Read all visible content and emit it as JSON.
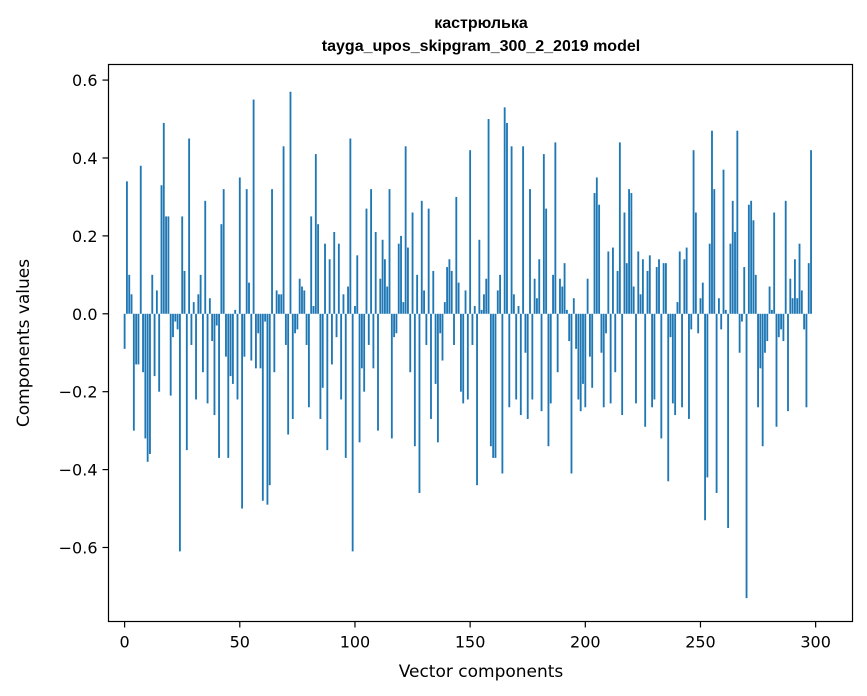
{
  "chart_data": {
    "type": "bar",
    "title": "кастрюлька",
    "subtitle": "tayga_upos_skipgram_300_2_2019 model",
    "xlabel": "Vector components",
    "ylabel": "Components values",
    "xlim": [
      -7,
      316
    ],
    "ylim": [
      -0.79,
      0.64
    ],
    "xticks": [
      0,
      50,
      100,
      150,
      200,
      250,
      300
    ],
    "yticks": [
      0.6,
      0.4,
      0.2,
      0.0,
      -0.2,
      -0.4,
      -0.6
    ],
    "ytick_labels": [
      "0.6",
      "0.4",
      "0.2",
      "0.0",
      "−0.2",
      "−0.4",
      "−0.6"
    ],
    "bar_color": "#1f77b4",
    "grid": false,
    "values": [
      -0.09,
      0.34,
      0.1,
      0.05,
      -0.3,
      -0.13,
      -0.13,
      0.38,
      -0.15,
      -0.32,
      -0.38,
      -0.36,
      0.1,
      -0.16,
      0.06,
      -0.2,
      0.33,
      0.49,
      0.25,
      0.25,
      -0.21,
      -0.06,
      -0.02,
      -0.04,
      -0.61,
      0.25,
      0.11,
      -0.35,
      0.45,
      -0.08,
      0.03,
      -0.22,
      0.05,
      0.1,
      -0.15,
      0.29,
      -0.23,
      0.04,
      -0.07,
      -0.26,
      -0.03,
      -0.37,
      0.23,
      0.32,
      -0.11,
      -0.37,
      -0.16,
      -0.18,
      0.01,
      -0.22,
      0.35,
      -0.5,
      -0.11,
      0.32,
      0.08,
      -0.12,
      0.55,
      -0.14,
      -0.05,
      -0.14,
      -0.48,
      -0.02,
      -0.49,
      -0.44,
      0.32,
      -0.15,
      0.06,
      0.05,
      0.05,
      0.43,
      -0.08,
      -0.31,
      0.57,
      -0.27,
      -0.05,
      -0.04,
      0.09,
      0.07,
      0.06,
      -0.08,
      -0.24,
      0.25,
      0.02,
      0.41,
      0.23,
      -0.27,
      -0.19,
      0.18,
      -0.35,
      0.14,
      -0.13,
      0.21,
      -0.06,
      0.18,
      -0.22,
      0.05,
      -0.37,
      0.07,
      0.45,
      -0.61,
      0.02,
      0.15,
      -0.33,
      -0.14,
      -0.2,
      0.27,
      -0.08,
      0.32,
      -0.14,
      0.21,
      -0.3,
      0.09,
      0.19,
      0.14,
      0.07,
      0.32,
      -0.32,
      -0.06,
      -0.05,
      0.18,
      0.2,
      0.03,
      0.43,
      0.17,
      -0.15,
      0.26,
      -0.34,
      0.1,
      -0.46,
      0.29,
      0.06,
      -0.08,
      0.27,
      -0.27,
      0.11,
      -0.18,
      -0.33,
      -0.05,
      -0.12,
      0.03,
      0.12,
      0.14,
      0.11,
      -0.08,
      0.3,
      0.08,
      -0.2,
      -0.23,
      0.06,
      -0.22,
      0.42,
      -0.08,
      0.02,
      -0.44,
      0.19,
      0.01,
      0.05,
      0.09,
      0.5,
      -0.34,
      -0.37,
      -0.37,
      0.06,
      0.1,
      -0.41,
      0.53,
      0.49,
      -0.24,
      0.43,
      0.05,
      -0.22,
      0.02,
      -0.26,
      0.43,
      -0.1,
      -0.27,
      0.32,
      -0.22,
      0.09,
      0.04,
      0.14,
      -0.25,
      0.41,
      0.27,
      -0.34,
      -0.23,
      0.1,
      0.44,
      -0.15,
      0.09,
      0.07,
      0.13,
      0.01,
      -0.07,
      -0.41,
      0.04,
      -0.09,
      -0.22,
      -0.25,
      -0.18,
      -0.24,
      0.09,
      -0.11,
      -0.19,
      0.31,
      0.35,
      0.28,
      -0.1,
      -0.24,
      -0.05,
      0.16,
      -0.23,
      0.17,
      -0.15,
      0.11,
      0.44,
      -0.26,
      0.26,
      0.13,
      0.32,
      0.31,
      0.07,
      -0.23,
      0.16,
      0.05,
      0.14,
      -0.29,
      0.11,
      0.15,
      -0.24,
      -0.22,
      0.12,
      0.14,
      -0.32,
      0.13,
      0.13,
      -0.43,
      -0.06,
      -0.23,
      -0.26,
      0.03,
      0.16,
      -0.24,
      0.14,
      0.17,
      -0.27,
      -0.04,
      0.42,
      0.26,
      -0.05,
      0.04,
      0.08,
      -0.53,
      -0.42,
      0.18,
      0.47,
      0.32,
      -0.46,
      0.04,
      -0.04,
      0.37,
      0.01,
      -0.55,
      0.18,
      0.29,
      0.21,
      0.47,
      -0.1,
      -0.02,
      0.12,
      -0.73,
      0.28,
      0.29,
      0.24,
      0.1,
      -0.24,
      -0.14,
      -0.34,
      -0.1,
      -0.07,
      0.07,
      0.01,
      0.26,
      -0.29,
      -0.06,
      -0.04,
      -0.07,
      0.29,
      -0.25,
      0.09,
      0.04,
      0.14,
      0.04,
      0.18,
      0.06,
      -0.04,
      -0.24,
      0.13,
      0.42
    ]
  }
}
